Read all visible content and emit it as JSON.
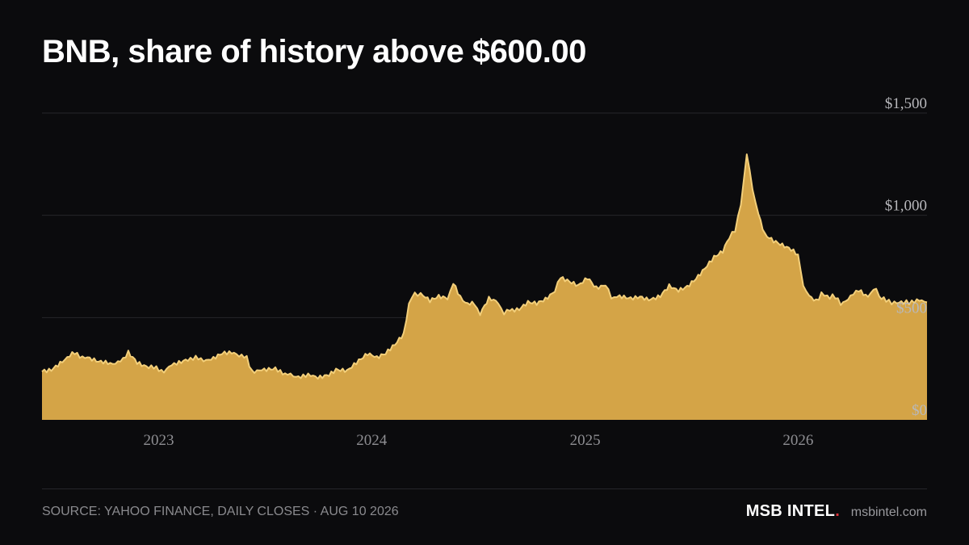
{
  "title": "BNB, share of history above $600.00",
  "source": "SOURCE: YAHOO FINANCE, DAILY CLOSES · AUG 10 2026",
  "brand": {
    "name": "MSB INTEL",
    "dot": ".",
    "site": "msbintel.com"
  },
  "colors": {
    "background": "#0b0b0d",
    "area_fill": "#d4a447",
    "area_line": "#f3cf7a",
    "gridline": "#26262a",
    "tick_text": "#b8b8bc",
    "brand_dot": "#e0323a"
  },
  "chart_data": {
    "type": "area",
    "title": "BNB, share of history above $600.00",
    "xlabel": "",
    "ylabel": "",
    "ylim": [
      0,
      1500
    ],
    "y_ticks": [
      {
        "value": 0,
        "label": "$0"
      },
      {
        "value": 500,
        "label": "$500"
      },
      {
        "value": 1000,
        "label": "$1,000"
      },
      {
        "value": 1500,
        "label": "$1,500"
      }
    ],
    "x_range": [
      "2022-06-15",
      "2026-08-10"
    ],
    "x_ticks": [
      {
        "date": "2023-01-01",
        "label": "2023"
      },
      {
        "date": "2024-01-01",
        "label": "2024"
      },
      {
        "date": "2025-01-01",
        "label": "2025"
      },
      {
        "date": "2026-01-01",
        "label": "2026"
      }
    ],
    "threshold": 600,
    "grid": true,
    "series": [
      {
        "x": [
          "2022-06-15",
          "2022-07-01",
          "2022-07-20",
          "2022-08-10",
          "2022-09-01",
          "2022-09-20",
          "2022-10-10",
          "2022-11-01",
          "2022-11-10",
          "2022-11-25",
          "2022-12-15",
          "2023-01-10",
          "2023-02-01",
          "2023-02-20",
          "2023-03-10",
          "2023-04-01",
          "2023-04-20",
          "2023-05-10",
          "2023-06-01",
          "2023-06-10",
          "2023-07-01",
          "2023-07-20",
          "2023-08-10",
          "2023-08-20",
          "2023-09-10",
          "2023-10-01",
          "2023-10-20",
          "2023-11-01",
          "2023-11-20",
          "2023-12-10",
          "2023-12-25",
          "2024-01-10",
          "2024-01-25",
          "2024-02-10",
          "2024-02-25",
          "2024-03-05",
          "2024-03-15",
          "2024-03-25",
          "2024-04-10",
          "2024-04-25",
          "2024-05-10",
          "2024-05-20",
          "2024-06-01",
          "2024-06-10",
          "2024-06-25",
          "2024-07-05",
          "2024-07-20",
          "2024-08-05",
          "2024-08-15",
          "2024-08-25",
          "2024-09-10",
          "2024-09-25",
          "2024-10-10",
          "2024-10-25",
          "2024-11-10",
          "2024-11-20",
          "2024-12-05",
          "2024-12-20",
          "2025-01-05",
          "2025-01-20",
          "2025-02-05",
          "2025-02-15",
          "2025-03-01",
          "2025-03-20",
          "2025-04-05",
          "2025-04-20",
          "2025-05-10",
          "2025-05-25",
          "2025-06-10",
          "2025-06-25",
          "2025-07-10",
          "2025-07-25",
          "2025-08-10",
          "2025-08-25",
          "2025-09-05",
          "2025-09-15",
          "2025-09-25",
          "2025-10-05",
          "2025-10-15",
          "2025-10-25",
          "2025-11-05",
          "2025-11-20",
          "2025-12-05",
          "2025-12-20",
          "2026-01-01",
          "2026-01-10",
          "2026-01-20",
          "2026-02-01",
          "2026-02-10",
          "2026-02-20",
          "2026-03-01",
          "2026-03-15",
          "2026-04-01",
          "2026-04-15",
          "2026-05-01",
          "2026-05-15",
          "2026-05-20",
          "2026-06-01",
          "2026-06-15",
          "2026-07-01",
          "2026-07-15",
          "2026-08-01",
          "2026-08-10"
        ],
        "y": [
          240,
          250,
          290,
          325,
          300,
          280,
          275,
          290,
          335,
          285,
          260,
          240,
          280,
          300,
          300,
          290,
          320,
          330,
          300,
          240,
          240,
          245,
          225,
          215,
          215,
          210,
          225,
          250,
          245,
          285,
          320,
          300,
          320,
          370,
          420,
          570,
          620,
          610,
          580,
          600,
          590,
          670,
          595,
          570,
          570,
          515,
          590,
          570,
          520,
          540,
          545,
          580,
          575,
          595,
          630,
          700,
          680,
          660,
          700,
          650,
          660,
          600,
          600,
          590,
          605,
          590,
          610,
          660,
          630,
          650,
          690,
          740,
          790,
          820,
          890,
          930,
          1050,
          1300,
          1130,
          1000,
          900,
          870,
          850,
          830,
          800,
          660,
          600,
          580,
          620,
          600,
          610,
          570,
          600,
          640,
          600,
          650,
          600,
          580,
          575,
          570,
          580,
          580,
          575
        ]
      }
    ]
  }
}
